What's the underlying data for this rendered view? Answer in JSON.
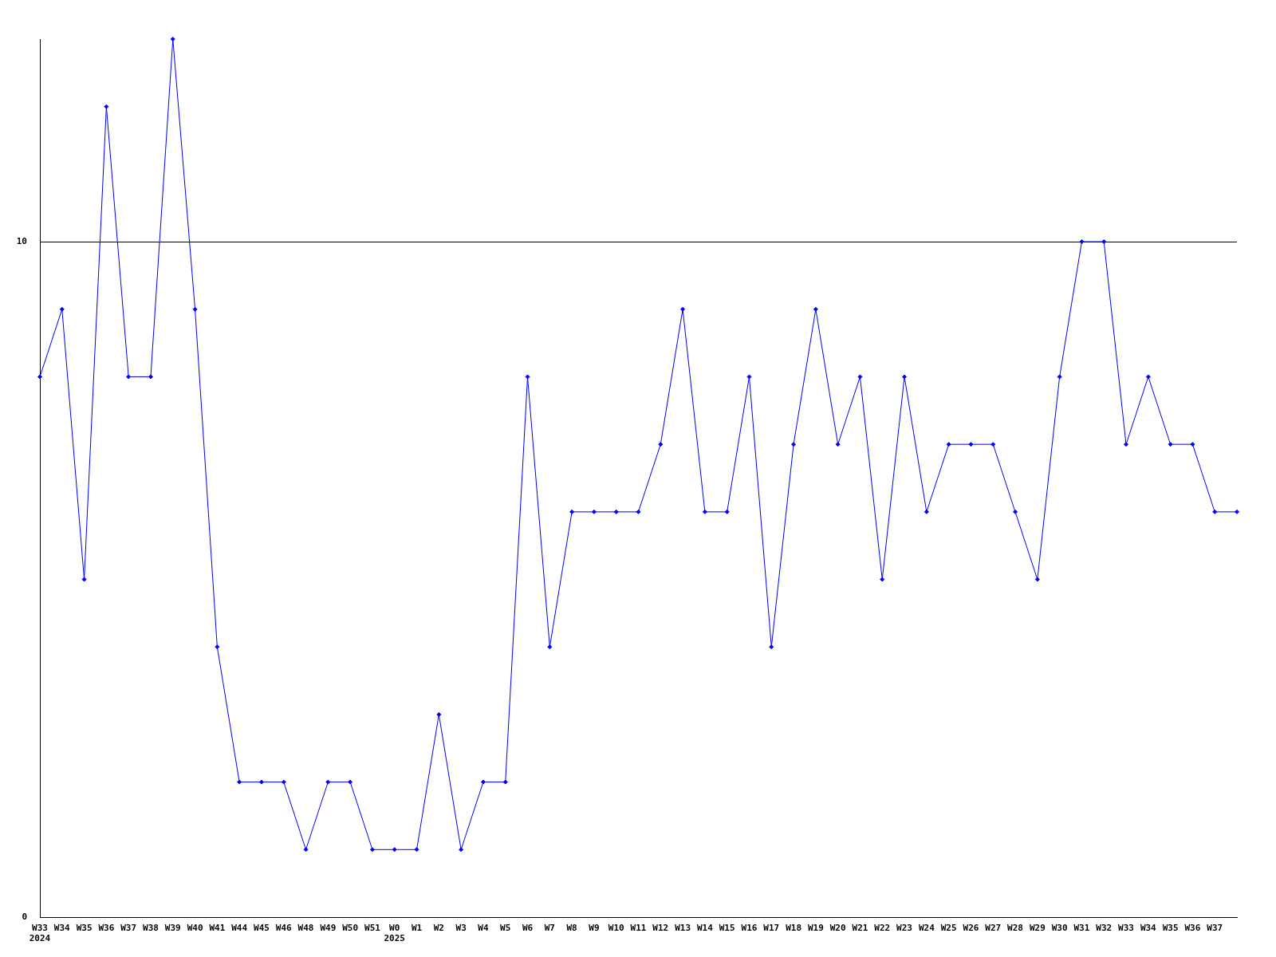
{
  "chart_data": {
    "type": "line",
    "categories": [
      "W33\n2024",
      "W34",
      "W35",
      "W36",
      "W37",
      "W38",
      "W39",
      "W40",
      "W41",
      "W44",
      "W45",
      "W46",
      "W48",
      "W49",
      "W50",
      "W51",
      "W0\n2025",
      "W1",
      "W2",
      "W3",
      "W4",
      "W5",
      "W6",
      "W7",
      "W8",
      "W9",
      "W10",
      "W11",
      "W12",
      "W13",
      "W14",
      "W15",
      "W16",
      "W17",
      "W18",
      "W19",
      "W20",
      "W21",
      "W22",
      "W23",
      "W24",
      "W25",
      "W26",
      "W27",
      "W28",
      "W29",
      "W30",
      "W31",
      "W32",
      "W33",
      "W34",
      "W35",
      "W36",
      "W37",
      null
    ],
    "series": [
      {
        "color": "#0000ff",
        "values": [
          8,
          9,
          5,
          12,
          8,
          8,
          13,
          9,
          4,
          2,
          2,
          2,
          1,
          2,
          2,
          1,
          1,
          1,
          3,
          1,
          2,
          2,
          8,
          4,
          6,
          6,
          6,
          6,
          7,
          9,
          6,
          6,
          8,
          4,
          7,
          9,
          7,
          8,
          5,
          8,
          6,
          7,
          7,
          7,
          6,
          5,
          8,
          10,
          10,
          7,
          8,
          7,
          7,
          6,
          6
        ]
      }
    ],
    "ylim": [
      0,
      13
    ],
    "yticks": [
      0,
      10
    ],
    "grid": "y",
    "legend": false,
    "marker": "diamond",
    "line_style": "solid"
  }
}
